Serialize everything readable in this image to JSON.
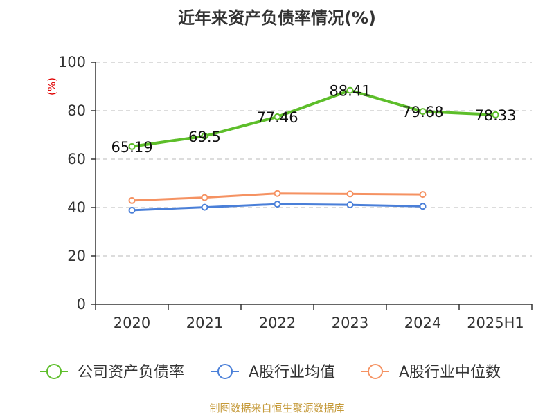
{
  "chart_data": {
    "type": "line",
    "title": "近年来资产负债率情况(%)",
    "unit_label": "(%)",
    "categories": [
      "2020",
      "2021",
      "2022",
      "2023",
      "2024",
      "2025H1"
    ],
    "ylim": [
      0,
      100
    ],
    "yticks": [
      0,
      20,
      40,
      60,
      80,
      100
    ],
    "grid": true,
    "legend_position": "bottom",
    "series": [
      {
        "name": "公司资产负债率",
        "color": "#5dbe2a",
        "values": [
          65.19,
          69.5,
          77.46,
          88.41,
          79.68,
          78.33
        ],
        "labels": [
          "65.19",
          "69.5",
          "77.46",
          "88.41",
          "79.68",
          "78.33"
        ]
      },
      {
        "name": "A股行业均值",
        "color": "#4a7fd8",
        "values": [
          38.9,
          40.1,
          41.4,
          41.1,
          40.5,
          null
        ]
      },
      {
        "name": "A股行业中位数",
        "color": "#f59262",
        "values": [
          42.9,
          44.1,
          45.8,
          45.6,
          45.4,
          null
        ]
      }
    ]
  },
  "source_note": "制图数据来自恒生聚源数据库"
}
